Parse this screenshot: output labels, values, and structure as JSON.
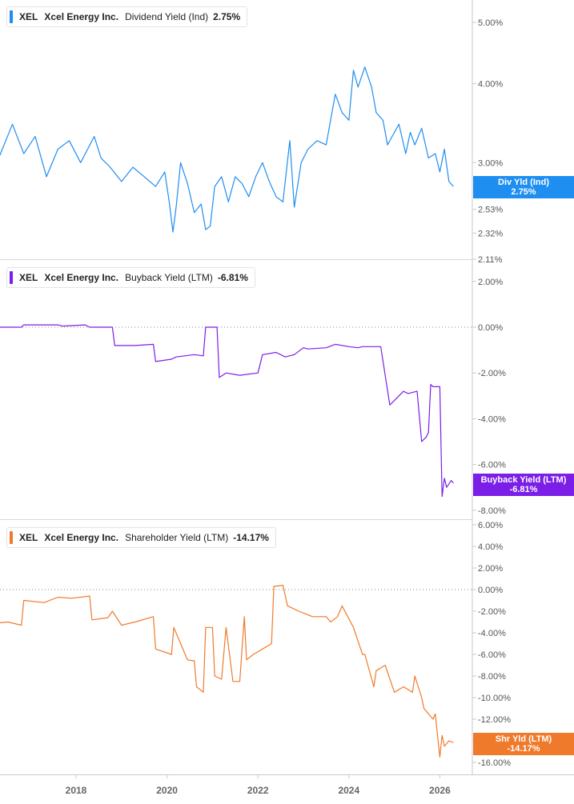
{
  "ticker": "XEL",
  "company": "Xcel Energy Inc.",
  "x_axis_labels": [
    "2018",
    "2020",
    "2022",
    "2024",
    "2026"
  ],
  "chart_data": [
    {
      "type": "line",
      "metric": "Dividend Yield (Ind)",
      "current_value": "2.75%",
      "badge_label": "Div Yld (Ind)",
      "color": "#1f8ef1",
      "scale": "log",
      "y_ticks": [
        "5.00%",
        "4.00%",
        "3.00%",
        "2.53%",
        "2.32%",
        "2.11%"
      ],
      "y_tick_values": [
        5.0,
        4.0,
        3.0,
        2.53,
        2.32,
        2.11
      ],
      "ylim": [
        2.11,
        5.8
      ],
      "x_range": [
        2016.05,
        2026.45
      ],
      "series": [
        {
          "x": [
            2016.05,
            2016.3,
            2016.6,
            2016.85,
            2017.1,
            2017.35,
            2017.6,
            2017.85,
            2018.1,
            2018.4,
            2018.55,
            2018.75,
            2019.0,
            2019.25,
            2019.5,
            2019.75,
            2019.95,
            2020.05,
            2020.13,
            2020.2,
            2020.3,
            2020.45,
            2020.6,
            2020.75,
            2020.85,
            2020.95,
            2021.05,
            2021.2,
            2021.35,
            2021.5,
            2021.65,
            2021.8,
            2021.95,
            2022.1,
            2022.25,
            2022.4,
            2022.55,
            2022.7,
            2022.8,
            2022.95,
            2023.1,
            2023.3,
            2023.5,
            2023.7,
            2023.85,
            2024.0,
            2024.1,
            2024.2,
            2024.35,
            2024.5,
            2024.6,
            2024.75,
            2024.85,
            2024.95,
            2025.1,
            2025.25,
            2025.35,
            2025.45,
            2025.6,
            2025.75,
            2025.9,
            2026.0,
            2026.1,
            2026.2,
            2026.3
          ],
          "y": [
            3.3,
            3.05,
            3.45,
            3.1,
            3.3,
            2.85,
            3.15,
            3.25,
            3.0,
            3.3,
            3.05,
            2.95,
            2.8,
            2.95,
            2.85,
            2.75,
            2.9,
            2.6,
            2.33,
            2.55,
            3.0,
            2.78,
            2.5,
            2.58,
            2.35,
            2.38,
            2.75,
            2.85,
            2.6,
            2.85,
            2.78,
            2.65,
            2.85,
            3.0,
            2.8,
            2.65,
            2.6,
            3.25,
            2.55,
            3.0,
            3.15,
            3.25,
            3.2,
            3.85,
            3.6,
            3.5,
            4.2,
            3.95,
            4.25,
            3.95,
            3.6,
            3.5,
            3.2,
            3.3,
            3.45,
            3.1,
            3.35,
            3.2,
            3.4,
            3.05,
            3.1,
            2.9,
            3.15,
            2.8,
            2.75
          ]
        }
      ]
    },
    {
      "type": "line",
      "metric": "Buyback Yield (LTM)",
      "current_value": "-6.81%",
      "badge_label": "Buyback Yield (LTM)",
      "color": "#7b1fe8",
      "y_ticks": [
        "2.00%",
        "0.00%",
        "-2.00%",
        "-4.00%",
        "-6.00%",
        "-8.00%"
      ],
      "y_tick_values": [
        2,
        0,
        -2,
        -4,
        -6,
        -8
      ],
      "ylim": [
        -8,
        2
      ],
      "x_range": [
        2016.05,
        2026.45
      ],
      "series": [
        {
          "x": [
            2016.05,
            2016.8,
            2016.85,
            2017.6,
            2017.7,
            2018.2,
            2018.3,
            2018.8,
            2018.85,
            2019.3,
            2019.7,
            2019.75,
            2020.1,
            2020.2,
            2020.6,
            2020.8,
            2020.85,
            2021.1,
            2021.15,
            2021.3,
            2021.6,
            2022.0,
            2022.1,
            2022.4,
            2022.6,
            2022.8,
            2023.0,
            2023.1,
            2023.5,
            2023.7,
            2024.0,
            2024.2,
            2024.3,
            2024.7,
            2024.9,
            2024.95,
            2025.1,
            2025.2,
            2025.3,
            2025.5,
            2025.6,
            2025.7,
            2025.75,
            2025.8,
            2025.85,
            2026.0,
            2026.05,
            2026.1,
            2026.15,
            2026.25,
            2026.3
          ],
          "y": [
            0,
            0,
            0.1,
            0.1,
            0.05,
            0.1,
            0.0,
            0,
            -0.8,
            -0.8,
            -0.75,
            -1.5,
            -1.4,
            -1.3,
            -1.2,
            -1.25,
            0,
            0,
            -2.2,
            -2.0,
            -2.1,
            -2.0,
            -1.2,
            -1.1,
            -1.3,
            -1.2,
            -0.9,
            -0.95,
            -0.9,
            -0.75,
            -0.85,
            -0.9,
            -0.85,
            -0.85,
            -3.4,
            -3.3,
            -3.0,
            -2.8,
            -2.9,
            -2.8,
            -5.0,
            -4.8,
            -4.6,
            -2.5,
            -2.6,
            -2.6,
            -7.4,
            -6.6,
            -7.0,
            -6.7,
            -6.81
          ]
        }
      ]
    },
    {
      "type": "line",
      "metric": "Shareholder Yield (LTM)",
      "current_value": "-14.17%",
      "badge_label": "Shr Yld (LTM)",
      "color": "#f07a2c",
      "y_ticks": [
        "6.00%",
        "4.00%",
        "2.00%",
        "0.00%",
        "-2.00%",
        "-4.00%",
        "-6.00%",
        "-8.00%",
        "-10.00%",
        "-12.00%",
        "-14.00%",
        "-16.00%"
      ],
      "y_tick_values": [
        6,
        4,
        2,
        0,
        -2,
        -4,
        -6,
        -8,
        -10,
        -12,
        -14,
        -16
      ],
      "ylim": [
        -16.5,
        6
      ],
      "x_range": [
        2016.05,
        2026.45
      ],
      "series": [
        {
          "x": [
            2016.05,
            2016.5,
            2016.8,
            2016.85,
            2017.3,
            2017.6,
            2017.9,
            2018.3,
            2018.35,
            2018.7,
            2018.8,
            2019.0,
            2019.3,
            2019.7,
            2019.75,
            2020.1,
            2020.15,
            2020.4,
            2020.45,
            2020.6,
            2020.65,
            2020.8,
            2020.85,
            2021.0,
            2021.05,
            2021.2,
            2021.3,
            2021.45,
            2021.6,
            2021.7,
            2021.75,
            2021.9,
            2022.1,
            2022.3,
            2022.35,
            2022.55,
            2022.65,
            2022.9,
            2023.2,
            2023.5,
            2023.6,
            2023.75,
            2023.85,
            2024.1,
            2024.3,
            2024.35,
            2024.55,
            2024.6,
            2024.8,
            2025.0,
            2025.2,
            2025.4,
            2025.45,
            2025.6,
            2025.65,
            2025.85,
            2025.9,
            2026.0,
            2026.05,
            2026.1,
            2026.2,
            2026.3
          ],
          "y": [
            -3.2,
            -3.0,
            -3.3,
            -1.0,
            -1.2,
            -0.7,
            -0.8,
            -0.6,
            -2.8,
            -2.6,
            -2.0,
            -3.3,
            -3.0,
            -2.5,
            -5.5,
            -6.0,
            -3.5,
            -6.0,
            -6.5,
            -6.6,
            -9.0,
            -9.5,
            -3.5,
            -3.5,
            -8.0,
            -8.3,
            -3.5,
            -8.5,
            -8.5,
            -2.5,
            -6.5,
            -6.0,
            -5.5,
            -5.0,
            0.3,
            0.4,
            -1.5,
            -2.0,
            -2.5,
            -2.5,
            -3.0,
            -2.5,
            -1.5,
            -3.5,
            -6.0,
            -6.0,
            -9.0,
            -7.5,
            -7.0,
            -9.5,
            -9.0,
            -9.5,
            -8.0,
            -10.0,
            -11.0,
            -12.0,
            -11.5,
            -15.5,
            -13.5,
            -14.5,
            -14.0,
            -14.17
          ]
        }
      ]
    }
  ]
}
